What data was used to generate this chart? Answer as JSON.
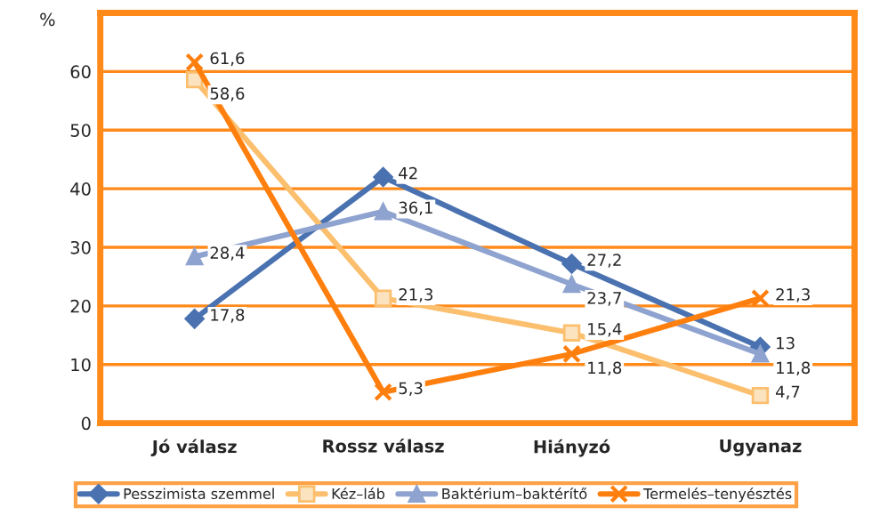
{
  "chart_data": {
    "type": "line",
    "ylabel": "%",
    "categories": [
      "Jó válasz",
      "Rossz válasz",
      "Hiányzó",
      "Ugyanaz"
    ],
    "series": [
      {
        "name": "Pesszimista szemmel",
        "color": "#4a72b0",
        "marker": "diamond",
        "values": [
          17.8,
          42,
          27.2,
          13
        ],
        "value_labels": [
          "17,8",
          "42",
          "27,2",
          "13"
        ]
      },
      {
        "name": "Kéz–láb",
        "color": "#fbbf6e",
        "marker": "square",
        "values": [
          58.6,
          21.3,
          15.4,
          4.7
        ],
        "value_labels": [
          "58,6",
          "21,3",
          "15,4",
          "4,7"
        ]
      },
      {
        "name": "Baktérium–baktérítő",
        "color": "#8ea3cf",
        "marker": "triangle",
        "values": [
          28.4,
          36.1,
          23.7,
          11.8
        ],
        "value_labels": [
          "28,4",
          "36,1",
          "23,7",
          "11,8"
        ]
      },
      {
        "name": "Termelés–tenyésztés",
        "color": "#ff7f0e",
        "marker": "cross",
        "values": [
          61.6,
          5.3,
          11.8,
          21.3
        ],
        "value_labels": [
          "61,6",
          "5,3",
          "11,8",
          "21,3"
        ]
      }
    ],
    "ylim": [
      0,
      70
    ],
    "yticks": [
      0,
      10,
      20,
      30,
      40,
      50,
      60
    ],
    "grid": "y",
    "legend": "bottom",
    "line_style": "solid"
  }
}
